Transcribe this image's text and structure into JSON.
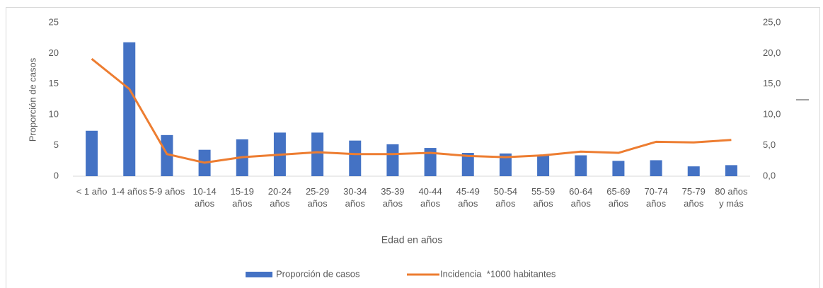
{
  "chart_data": {
    "type": "bar",
    "x_label": "Edad en años",
    "y_label": "Proporción de casos",
    "categories": [
      "< 1 año",
      "1-4 años",
      "5-9 años",
      "10-14 años",
      "15-19 años",
      "20-24 años",
      "25-29 años",
      "30-34 años",
      "35-39 años",
      "40-44 años",
      "45-49 años",
      "50-54 años",
      "55-59 años",
      "60-64 años",
      "65-69 años",
      "70-74 años",
      "75-79 años",
      "80 años y más"
    ],
    "series": [
      {
        "name": "Proporción de casos",
        "type": "bar",
        "color": "#4472c4",
        "values": [
          7.4,
          21.8,
          6.7,
          4.3,
          6.0,
          7.1,
          7.1,
          5.8,
          5.2,
          4.6,
          3.8,
          3.7,
          3.5,
          3.4,
          2.5,
          2.6,
          1.6,
          1.8
        ]
      },
      {
        "name": "Incidencia  *1000 habitantes",
        "type": "line",
        "axis": "y2",
        "color": "#ed7d31",
        "values": [
          19.1,
          14.2,
          3.6,
          2.2,
          3.1,
          3.5,
          3.9,
          3.6,
          3.6,
          3.8,
          3.3,
          3.1,
          3.4,
          4.0,
          3.8,
          5.6,
          5.5,
          5.9
        ]
      }
    ],
    "ylim": [
      0,
      25
    ],
    "yticks": [
      0,
      5,
      10,
      15,
      20,
      25
    ],
    "y2lim": [
      0,
      25
    ],
    "y2ticks": [
      {
        "value": 0,
        "label": "0,0"
      },
      {
        "value": 5,
        "label": "5,0"
      },
      {
        "value": 10,
        "label": "10,0"
      },
      {
        "value": 15,
        "label": "15,0"
      },
      {
        "value": 20,
        "label": "20,0"
      },
      {
        "value": 25,
        "label": "25,0"
      }
    ],
    "grid": false,
    "legend": "bottom"
  }
}
